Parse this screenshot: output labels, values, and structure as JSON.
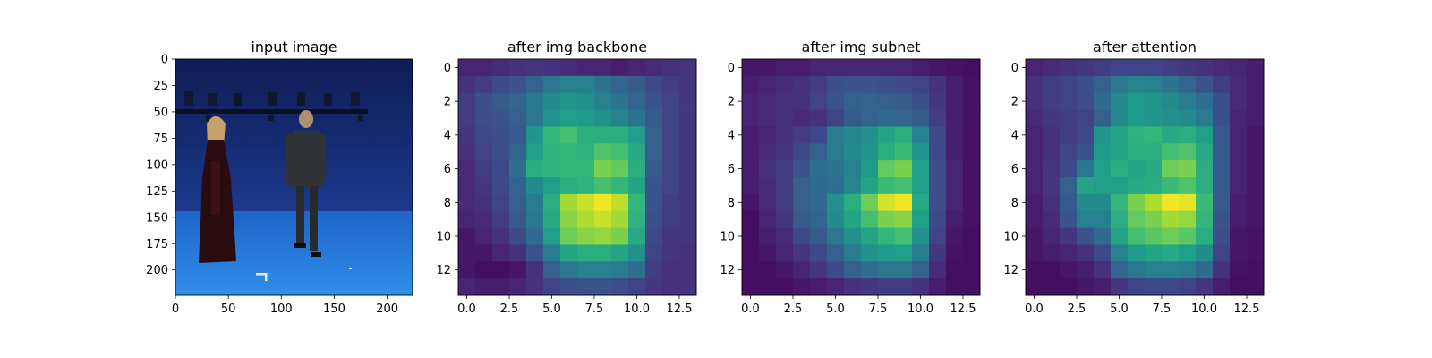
{
  "figure": {
    "background": "#ffffff",
    "colormap": "viridis"
  },
  "chart_data": [
    {
      "type": "image",
      "title": "input image",
      "image_description": "Motion-capture studio with blue backdrop and blue floor; a woman in a long dark dress with headscarf on the left and a man in a dark suit on the right; camera rig bar across the top; small white floor markers.",
      "xlim": [
        0,
        224
      ],
      "ylim": [
        224,
        0
      ],
      "xticks": [
        0,
        50,
        100,
        150,
        200
      ],
      "xtick_labels": [
        "0",
        "50",
        "100",
        "150",
        "200"
      ],
      "yticks": [
        0,
        25,
        50,
        75,
        100,
        125,
        150,
        175,
        200
      ],
      "ytick_labels": [
        "0",
        "25",
        "50",
        "75",
        "100",
        "125",
        "150",
        "175",
        "200"
      ]
    },
    {
      "type": "heatmap",
      "title": "after img backbone",
      "colormap": "viridis",
      "xlim": [
        -0.5,
        13.5
      ],
      "ylim": [
        13.5,
        -0.5
      ],
      "xticks": [
        0,
        2.5,
        5,
        7.5,
        10,
        12.5
      ],
      "xtick_labels": [
        "0.0",
        "2.5",
        "5.0",
        "7.5",
        "10.0",
        "12.5"
      ],
      "yticks": [
        0,
        2,
        4,
        6,
        8,
        10,
        12
      ],
      "ytick_labels": [
        "0",
        "2",
        "4",
        "6",
        "8",
        "10",
        "12"
      ],
      "values": [
        [
          0.1,
          0.1,
          0.12,
          0.14,
          0.15,
          0.14,
          0.12,
          0.1,
          0.1,
          0.08,
          0.1,
          0.12,
          0.14,
          0.15
        ],
        [
          0.14,
          0.18,
          0.22,
          0.26,
          0.32,
          0.4,
          0.45,
          0.44,
          0.38,
          0.32,
          0.28,
          0.22,
          0.18,
          0.15
        ],
        [
          0.18,
          0.24,
          0.28,
          0.32,
          0.4,
          0.48,
          0.52,
          0.5,
          0.44,
          0.38,
          0.32,
          0.26,
          0.2,
          0.16
        ],
        [
          0.18,
          0.24,
          0.26,
          0.3,
          0.4,
          0.52,
          0.56,
          0.54,
          0.5,
          0.45,
          0.38,
          0.28,
          0.2,
          0.16
        ],
        [
          0.16,
          0.22,
          0.24,
          0.28,
          0.52,
          0.66,
          0.7,
          0.62,
          0.62,
          0.62,
          0.56,
          0.3,
          0.2,
          0.16
        ],
        [
          0.14,
          0.2,
          0.24,
          0.32,
          0.56,
          0.64,
          0.66,
          0.64,
          0.72,
          0.7,
          0.6,
          0.3,
          0.2,
          0.16
        ],
        [
          0.12,
          0.18,
          0.22,
          0.36,
          0.62,
          0.64,
          0.66,
          0.66,
          0.8,
          0.76,
          0.62,
          0.28,
          0.2,
          0.16
        ],
        [
          0.12,
          0.16,
          0.22,
          0.32,
          0.48,
          0.56,
          0.62,
          0.64,
          0.7,
          0.66,
          0.58,
          0.26,
          0.2,
          0.16
        ],
        [
          0.12,
          0.14,
          0.2,
          0.3,
          0.42,
          0.62,
          0.86,
          0.92,
          0.98,
          0.9,
          0.66,
          0.26,
          0.18,
          0.16
        ],
        [
          0.1,
          0.12,
          0.18,
          0.28,
          0.4,
          0.6,
          0.82,
          0.88,
          0.92,
          0.86,
          0.64,
          0.24,
          0.18,
          0.16
        ],
        [
          0.06,
          0.1,
          0.14,
          0.22,
          0.34,
          0.56,
          0.78,
          0.82,
          0.84,
          0.8,
          0.6,
          0.22,
          0.16,
          0.15
        ],
        [
          0.06,
          0.06,
          0.1,
          0.14,
          0.26,
          0.42,
          0.58,
          0.62,
          0.62,
          0.58,
          0.5,
          0.2,
          0.15,
          0.14
        ],
        [
          0.06,
          0.04,
          0.04,
          0.06,
          0.14,
          0.3,
          0.4,
          0.44,
          0.44,
          0.42,
          0.36,
          0.18,
          0.14,
          0.14
        ],
        [
          0.1,
          0.08,
          0.08,
          0.1,
          0.14,
          0.2,
          0.24,
          0.26,
          0.26,
          0.24,
          0.2,
          0.16,
          0.14,
          0.14
        ]
      ]
    },
    {
      "type": "heatmap",
      "title": "after img subnet",
      "colormap": "viridis",
      "xlim": [
        -0.5,
        13.5
      ],
      "ylim": [
        13.5,
        -0.5
      ],
      "xticks": [
        0,
        2.5,
        5,
        7.5,
        10,
        12.5
      ],
      "xtick_labels": [
        "0.0",
        "2.5",
        "5.0",
        "7.5",
        "10.0",
        "12.5"
      ],
      "yticks": [
        0,
        2,
        4,
        6,
        8,
        10,
        12
      ],
      "ytick_labels": [
        "0",
        "2",
        "4",
        "6",
        "8",
        "10",
        "12"
      ],
      "values": [
        [
          0.06,
          0.06,
          0.08,
          0.08,
          0.1,
          0.1,
          0.1,
          0.1,
          0.1,
          0.1,
          0.08,
          0.06,
          0.05,
          0.04
        ],
        [
          0.08,
          0.1,
          0.12,
          0.14,
          0.18,
          0.24,
          0.26,
          0.26,
          0.24,
          0.22,
          0.2,
          0.14,
          0.08,
          0.05
        ],
        [
          0.1,
          0.12,
          0.14,
          0.14,
          0.2,
          0.26,
          0.3,
          0.32,
          0.3,
          0.28,
          0.24,
          0.16,
          0.08,
          0.05
        ],
        [
          0.1,
          0.12,
          0.14,
          0.12,
          0.14,
          0.2,
          0.28,
          0.32,
          0.34,
          0.32,
          0.28,
          0.18,
          0.08,
          0.05
        ],
        [
          0.08,
          0.1,
          0.14,
          0.18,
          0.22,
          0.42,
          0.46,
          0.5,
          0.58,
          0.62,
          0.44,
          0.22,
          0.08,
          0.05
        ],
        [
          0.08,
          0.12,
          0.16,
          0.22,
          0.3,
          0.42,
          0.48,
          0.52,
          0.62,
          0.68,
          0.52,
          0.22,
          0.08,
          0.05
        ],
        [
          0.08,
          0.14,
          0.18,
          0.26,
          0.36,
          0.38,
          0.44,
          0.54,
          0.76,
          0.8,
          0.56,
          0.24,
          0.1,
          0.05
        ],
        [
          0.08,
          0.12,
          0.18,
          0.3,
          0.34,
          0.36,
          0.46,
          0.58,
          0.68,
          0.7,
          0.56,
          0.24,
          0.1,
          0.05
        ],
        [
          0.06,
          0.12,
          0.18,
          0.3,
          0.34,
          0.5,
          0.62,
          0.78,
          0.94,
          0.98,
          0.6,
          0.24,
          0.1,
          0.05
        ],
        [
          0.04,
          0.1,
          0.16,
          0.28,
          0.32,
          0.48,
          0.58,
          0.7,
          0.8,
          0.82,
          0.56,
          0.22,
          0.08,
          0.05
        ],
        [
          0.04,
          0.08,
          0.12,
          0.22,
          0.28,
          0.4,
          0.5,
          0.58,
          0.66,
          0.7,
          0.5,
          0.2,
          0.06,
          0.04
        ],
        [
          0.04,
          0.06,
          0.1,
          0.16,
          0.22,
          0.3,
          0.42,
          0.5,
          0.54,
          0.56,
          0.42,
          0.16,
          0.05,
          0.04
        ],
        [
          0.04,
          0.04,
          0.06,
          0.1,
          0.16,
          0.22,
          0.3,
          0.36,
          0.4,
          0.4,
          0.3,
          0.12,
          0.04,
          0.04
        ],
        [
          0.04,
          0.04,
          0.04,
          0.06,
          0.08,
          0.1,
          0.14,
          0.16,
          0.18,
          0.18,
          0.14,
          0.08,
          0.04,
          0.04
        ]
      ]
    },
    {
      "type": "heatmap",
      "title": "after attention",
      "colormap": "viridis",
      "xlim": [
        -0.5,
        13.5
      ],
      "ylim": [
        13.5,
        -0.5
      ],
      "xticks": [
        0,
        2.5,
        5,
        7.5,
        10,
        12.5
      ],
      "xtick_labels": [
        "0.0",
        "2.5",
        "5.0",
        "7.5",
        "10.0",
        "12.5"
      ],
      "yticks": [
        0,
        2,
        4,
        6,
        8,
        10,
        12
      ],
      "ytick_labels": [
        "0",
        "2",
        "4",
        "6",
        "8",
        "10",
        "12"
      ],
      "values": [
        [
          0.1,
          0.12,
          0.14,
          0.16,
          0.18,
          0.2,
          0.2,
          0.2,
          0.18,
          0.16,
          0.14,
          0.12,
          0.1,
          0.08
        ],
        [
          0.14,
          0.18,
          0.2,
          0.24,
          0.3,
          0.4,
          0.46,
          0.44,
          0.38,
          0.32,
          0.26,
          0.18,
          0.12,
          0.08
        ],
        [
          0.14,
          0.18,
          0.2,
          0.24,
          0.34,
          0.48,
          0.54,
          0.52,
          0.48,
          0.42,
          0.36,
          0.24,
          0.12,
          0.08
        ],
        [
          0.12,
          0.16,
          0.18,
          0.2,
          0.3,
          0.48,
          0.54,
          0.52,
          0.5,
          0.48,
          0.42,
          0.24,
          0.1,
          0.08
        ],
        [
          0.1,
          0.14,
          0.18,
          0.22,
          0.52,
          0.58,
          0.64,
          0.66,
          0.6,
          0.62,
          0.56,
          0.28,
          0.1,
          0.06
        ],
        [
          0.1,
          0.14,
          0.2,
          0.26,
          0.54,
          0.58,
          0.62,
          0.62,
          0.7,
          0.72,
          0.6,
          0.28,
          0.1,
          0.06
        ],
        [
          0.1,
          0.16,
          0.22,
          0.4,
          0.56,
          0.62,
          0.58,
          0.6,
          0.78,
          0.8,
          0.62,
          0.28,
          0.1,
          0.06
        ],
        [
          0.1,
          0.16,
          0.3,
          0.58,
          0.56,
          0.56,
          0.6,
          0.62,
          0.68,
          0.72,
          0.62,
          0.28,
          0.1,
          0.06
        ],
        [
          0.08,
          0.14,
          0.28,
          0.48,
          0.48,
          0.66,
          0.8,
          0.88,
          0.98,
          0.96,
          0.68,
          0.28,
          0.08,
          0.06
        ],
        [
          0.08,
          0.12,
          0.26,
          0.44,
          0.44,
          0.62,
          0.76,
          0.8,
          0.86,
          0.84,
          0.66,
          0.26,
          0.08,
          0.06
        ],
        [
          0.06,
          0.1,
          0.16,
          0.26,
          0.34,
          0.58,
          0.7,
          0.74,
          0.78,
          0.74,
          0.62,
          0.24,
          0.06,
          0.05
        ],
        [
          0.06,
          0.08,
          0.1,
          0.14,
          0.22,
          0.44,
          0.54,
          0.58,
          0.6,
          0.56,
          0.48,
          0.2,
          0.06,
          0.05
        ],
        [
          0.04,
          0.04,
          0.06,
          0.08,
          0.14,
          0.32,
          0.4,
          0.44,
          0.44,
          0.42,
          0.34,
          0.14,
          0.05,
          0.04
        ],
        [
          0.04,
          0.04,
          0.04,
          0.06,
          0.08,
          0.16,
          0.2,
          0.22,
          0.22,
          0.2,
          0.16,
          0.08,
          0.04,
          0.04
        ]
      ]
    }
  ]
}
